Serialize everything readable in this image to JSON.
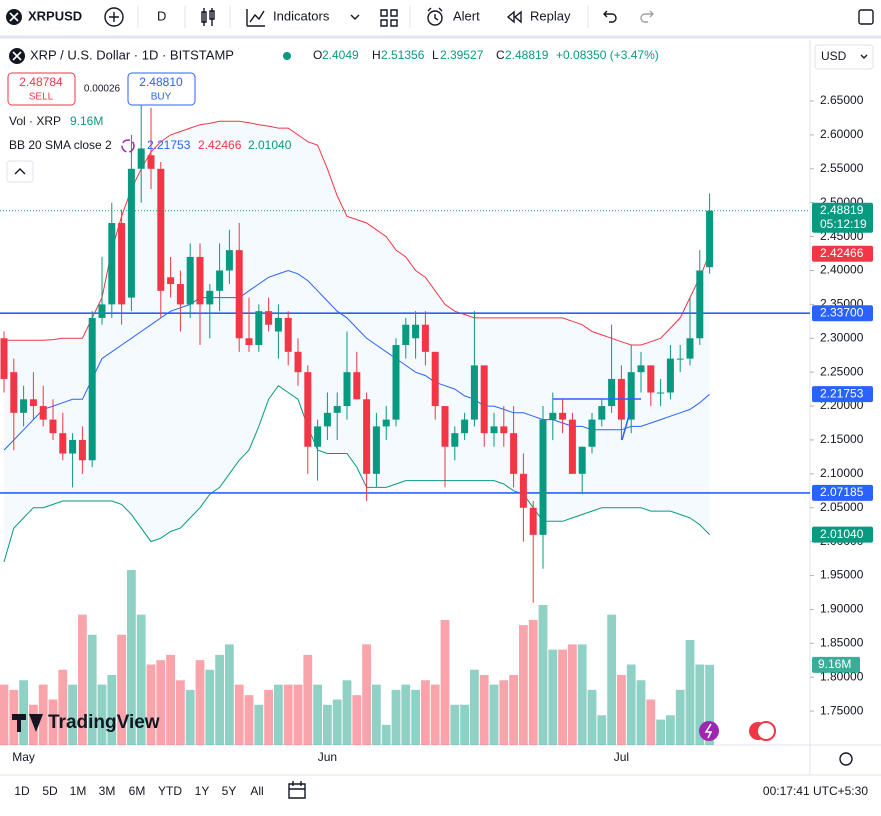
{
  "toolbar": {
    "symbol": "XRPUSD",
    "interval": "D",
    "indicators": "Indicators",
    "alert": "Alert",
    "replay": "Replay"
  },
  "legend": {
    "title": "XRP / U.S. Dollar · 1D · BITSTAMP",
    "o": "O",
    "h": "H",
    "l": "L",
    "c": "C",
    "change": "+0.08350 (+3.47%)",
    "sell": {
      "price": "2.48784",
      "label": "SELL"
    },
    "spread": "0.00026",
    "buy": {
      "price": "2.48810",
      "label": "BUY"
    },
    "vol": "Vol · XRP",
    "bb": "BB 20 SMA close 2"
  },
  "currency": "USD",
  "countdown": "05:12:19",
  "brand": "TradingView",
  "ranges": [
    "1D",
    "5D",
    "1M",
    "3M",
    "6M",
    "YTD",
    "1Y",
    "5Y",
    "All"
  ],
  "clock": "00:17:41 UTC+5:30",
  "chart_data": {
    "type": "candlestick",
    "categories": [
      null,
      null,
      "May",
      null,
      null,
      null,
      null,
      null,
      null,
      null,
      null,
      null,
      null,
      null,
      null,
      null,
      null,
      null,
      null,
      null,
      null,
      null,
      null,
      null,
      null,
      null,
      null,
      null,
      null,
      null,
      null,
      null,
      null,
      "Jun",
      null,
      null,
      null,
      null,
      null,
      null,
      null,
      null,
      null,
      null,
      null,
      null,
      null,
      null,
      null,
      null,
      null,
      null,
      null,
      null,
      null,
      null,
      null,
      null,
      null,
      null,
      null,
      null,
      null,
      "Jul",
      null,
      null,
      null,
      null,
      null,
      null,
      null,
      null,
      null
    ],
    "open": [
      2.3,
      2.25,
      2.19,
      2.21,
      2.2,
      2.18,
      2.16,
      2.13,
      2.15,
      2.12,
      2.33,
      2.35,
      2.47,
      2.36,
      2.55,
      2.57,
      2.55,
      2.39,
      2.38,
      2.35,
      2.42,
      2.35,
      2.37,
      2.4,
      2.43,
      2.3,
      2.29,
      2.34,
      2.31,
      2.33,
      2.28,
      2.25,
      2.14,
      2.17,
      2.19,
      2.2,
      2.25,
      2.21,
      2.1,
      2.17,
      2.18,
      2.29,
      2.3,
      2.32,
      2.28,
      2.2,
      2.14,
      2.16,
      2.18,
      2.26,
      2.16,
      2.17,
      2.16,
      2.1,
      2.05,
      2.01,
      2.18,
      2.19,
      2.18,
      2.1,
      2.14,
      2.18,
      2.2,
      2.24,
      2.18,
      2.25,
      2.26,
      2.22,
      2.22,
      2.27,
      2.27,
      2.3,
      2.4049
    ],
    "high": [
      2.31,
      2.27,
      2.23,
      2.25,
      2.23,
      2.21,
      2.19,
      2.16,
      2.17,
      2.34,
      2.42,
      2.5,
      2.49,
      2.6,
      2.65,
      2.64,
      2.56,
      2.42,
      2.4,
      2.44,
      2.44,
      2.38,
      2.44,
      2.46,
      2.47,
      2.36,
      2.35,
      2.36,
      2.35,
      2.34,
      2.3,
      2.26,
      2.18,
      2.22,
      2.22,
      2.31,
      2.28,
      2.22,
      2.19,
      2.2,
      2.3,
      2.33,
      2.34,
      2.34,
      2.28,
      2.2,
      2.17,
      2.19,
      2.34,
      2.26,
      2.19,
      2.2,
      2.2,
      2.13,
      2.06,
      2.2,
      2.22,
      2.21,
      2.19,
      2.14,
      2.19,
      2.21,
      2.32,
      2.26,
      2.29,
      2.28,
      2.26,
      2.24,
      2.29,
      2.29,
      2.36,
      2.43,
      2.51356
    ],
    "low": [
      2.22,
      2.135,
      2.17,
      2.18,
      2.17,
      2.15,
      2.12,
      2.08,
      2.1,
      2.11,
      2.32,
      2.33,
      2.32,
      2.34,
      2.5,
      2.52,
      2.33,
      2.36,
      2.31,
      2.33,
      2.29,
      2.3,
      2.34,
      2.38,
      2.28,
      2.28,
      2.28,
      2.31,
      2.27,
      2.26,
      2.23,
      2.1,
      2.09,
      2.15,
      2.15,
      2.18,
      2.21,
      2.06,
      2.08,
      2.15,
      2.17,
      2.27,
      2.27,
      2.26,
      2.18,
      2.08,
      2.12,
      2.15,
      2.17,
      2.14,
      2.14,
      2.14,
      2.08,
      2.0,
      1.91,
      1.96,
      2.15,
      2.16,
      2.1,
      2.07,
      2.13,
      2.17,
      2.19,
      2.15,
      2.16,
      2.22,
      2.2,
      2.2,
      2.21,
      2.25,
      2.26,
      2.29,
      2.39527
    ],
    "close": [
      2.24,
      2.19,
      2.21,
      2.2,
      2.18,
      2.16,
      2.13,
      2.15,
      2.12,
      2.33,
      2.35,
      2.47,
      2.35,
      2.55,
      2.58,
      2.55,
      2.37,
      2.38,
      2.35,
      2.42,
      2.35,
      2.37,
      2.4,
      2.43,
      2.3,
      2.29,
      2.34,
      2.32,
      2.33,
      2.28,
      2.25,
      2.14,
      2.17,
      2.19,
      2.2,
      2.25,
      2.21,
      2.1,
      2.17,
      2.18,
      2.29,
      2.32,
      2.32,
      2.28,
      2.2,
      2.14,
      2.16,
      2.18,
      2.26,
      2.16,
      2.17,
      2.16,
      2.1,
      2.05,
      2.01,
      2.18,
      2.19,
      2.18,
      2.1,
      2.14,
      2.18,
      2.2,
      2.24,
      2.18,
      2.25,
      2.26,
      2.22,
      2.22,
      2.27,
      2.27,
      2.3,
      2.4,
      2.48819
    ],
    "up_color": "#089981",
    "down_color": "#f23645",
    "volume": {
      "values": [
        6.9,
        6.3,
        7.4,
        4.6,
        6.9,
        5.2,
        8.6,
        6.9,
        14.9,
        12.6,
        6.9,
        8.0,
        12.6,
        20.0,
        14.9,
        9.2,
        9.7,
        10.3,
        7.4,
        6.3,
        9.7,
        8.6,
        10.3,
        11.5,
        6.9,
        5.7,
        4.6,
        6.3,
        6.9,
        6.9,
        6.9,
        10.3,
        6.9,
        4.6,
        5.2,
        7.4,
        5.7,
        11.5,
        6.9,
        2.3,
        6.3,
        6.9,
        6.3,
        7.4,
        6.9,
        14.3,
        4.6,
        4.6,
        8.6,
        8.0,
        6.9,
        7.4,
        8.0,
        13.7,
        14.3,
        16.0,
        10.9,
        10.9,
        11.5,
        11.5,
        6.3,
        3.4,
        14.9,
        8.0,
        9.2,
        7.4,
        5.2,
        2.9,
        3.4,
        6.3,
        12.0,
        9.2,
        9.16
      ],
      "value_labels": [
        null,
        null,
        null,
        null,
        null,
        null,
        null,
        null,
        null,
        null,
        null,
        null,
        null,
        null,
        null,
        null,
        null,
        null,
        null,
        null,
        null,
        null,
        null,
        null,
        null,
        null,
        null,
        null,
        null,
        null,
        null,
        null,
        null,
        null,
        null,
        null,
        null,
        null,
        null,
        null,
        null,
        null,
        null,
        null,
        null,
        null,
        null,
        null,
        null,
        null,
        null,
        null,
        null,
        null,
        null,
        null,
        null,
        null,
        null,
        null,
        null,
        null,
        null,
        null,
        null,
        null,
        null,
        null,
        null,
        null,
        null,
        null,
        "9.16M"
      ]
    },
    "bands": {
      "basis": {
        "color": "#2962ff",
        "values": [
          2.135,
          2.15,
          2.165,
          2.18,
          2.195,
          2.2,
          2.205,
          2.21,
          2.21,
          2.24,
          2.27,
          2.28,
          2.29,
          2.3,
          2.31,
          2.32,
          2.33,
          2.34,
          2.345,
          2.35,
          2.36,
          2.36,
          2.36,
          2.36,
          2.36,
          2.37,
          2.38,
          2.39,
          2.395,
          2.4,
          2.395,
          2.385,
          2.37,
          2.355,
          2.34,
          2.33,
          2.315,
          2.3,
          2.29,
          2.28,
          2.27,
          2.26,
          2.25,
          2.245,
          2.235,
          2.23,
          2.225,
          2.215,
          2.21,
          2.2,
          2.2,
          2.195,
          2.19,
          2.19,
          2.185,
          2.18,
          2.18,
          2.175,
          2.17,
          2.17,
          2.165,
          2.165,
          2.165,
          2.165,
          2.17,
          2.17,
          2.175,
          2.18,
          2.185,
          2.19,
          2.195,
          2.205,
          2.21753
        ]
      },
      "upper": {
        "color": "#f23645",
        "values": [
          2.297,
          2.297,
          2.297,
          2.297,
          2.297,
          2.298,
          2.3,
          2.3,
          2.3,
          2.33,
          2.36,
          2.43,
          2.48,
          2.52,
          2.55,
          2.575,
          2.59,
          2.6,
          2.605,
          2.61,
          2.615,
          2.617,
          2.62,
          2.62,
          2.62,
          2.618,
          2.615,
          2.613,
          2.61,
          2.61,
          2.6,
          2.59,
          2.585,
          2.55,
          2.51,
          2.48,
          2.475,
          2.47,
          2.46,
          2.45,
          2.43,
          2.42,
          2.4,
          2.39,
          2.37,
          2.35,
          2.34,
          2.335,
          2.33,
          2.33,
          2.33,
          2.33,
          2.33,
          2.33,
          2.33,
          2.33,
          2.33,
          2.33,
          2.325,
          2.32,
          2.31,
          2.305,
          2.3,
          2.295,
          2.29,
          2.29,
          2.295,
          2.3,
          2.315,
          2.33,
          2.36,
          2.39,
          2.42466
        ]
      },
      "lower": {
        "color": "#089981",
        "values": [
          1.97,
          2.02,
          2.035,
          2.05,
          2.05,
          2.055,
          2.06,
          2.06,
          2.06,
          2.06,
          2.06,
          2.06,
          2.055,
          2.04,
          2.02,
          2.0,
          2.005,
          2.015,
          2.02,
          2.035,
          2.05,
          2.07,
          2.08,
          2.1,
          2.12,
          2.135,
          2.17,
          2.21,
          2.23,
          2.22,
          2.21,
          2.17,
          2.135,
          2.13,
          2.13,
          2.13,
          2.11,
          2.08,
          2.08,
          2.08,
          2.085,
          2.09,
          2.09,
          2.09,
          2.09,
          2.09,
          2.09,
          2.09,
          2.09,
          2.09,
          2.09,
          2.085,
          2.075,
          2.07,
          2.05,
          2.03,
          2.03,
          2.03,
          2.035,
          2.04,
          2.045,
          2.05,
          2.05,
          2.05,
          2.05,
          2.05,
          2.045,
          2.045,
          2.045,
          2.04,
          2.035,
          2.025,
          2.0104
        ],
        "value_labels": [
          null,
          null,
          null,
          null,
          null,
          null,
          null,
          null,
          null,
          null,
          null,
          null,
          null,
          null,
          null,
          null,
          null,
          null,
          null,
          null,
          null,
          null,
          null,
          null,
          null,
          null,
          null,
          null,
          null,
          null,
          null,
          null,
          null,
          null,
          null,
          null,
          null,
          null,
          null,
          null,
          null,
          null,
          null,
          null,
          null,
          null,
          null,
          null,
          null,
          null,
          null,
          null,
          null,
          null,
          null,
          null,
          null,
          null,
          null,
          null,
          null,
          null,
          null,
          null,
          null,
          null,
          null,
          null,
          null,
          null,
          null,
          null,
          "2.01040"
        ]
      }
    },
    "levels": [
      {
        "value": 2.337,
        "label": "2.33700",
        "color": "#2962ff"
      },
      {
        "value": 2.07185,
        "label": "2.07185",
        "color": "#2962ff"
      }
    ],
    "ylim": [
      1.7,
      2.74
    ],
    "yticks": [
      {
        "value": 2.65,
        "label": "2.65000"
      },
      {
        "value": 2.6,
        "label": "2.60000"
      },
      {
        "value": 2.55,
        "label": "2.55000"
      },
      {
        "value": 2.5,
        "label": "2.50000"
      },
      {
        "value": 2.45,
        "label": "2.45000"
      },
      {
        "value": 2.4,
        "label": "2.40000"
      },
      {
        "value": 2.35,
        "label": "2.35000"
      },
      {
        "value": 2.3,
        "label": "2.30000"
      },
      {
        "value": 2.25,
        "label": "2.25000"
      },
      {
        "value": 2.2,
        "label": "2.20000"
      },
      {
        "value": 2.15,
        "label": "2.15000"
      },
      {
        "value": 2.1,
        "label": "2.10000"
      },
      {
        "value": 2.05,
        "label": "2.05000"
      },
      {
        "value": 2.0,
        "label": "2.00000"
      },
      {
        "value": 1.95,
        "label": "1.95000"
      },
      {
        "value": 1.9,
        "label": "1.90000"
      },
      {
        "value": 1.85,
        "label": "1.85000"
      },
      {
        "value": 1.8,
        "label": "1.80000"
      },
      {
        "value": 1.75,
        "label": "1.75000"
      }
    ],
    "grid": false
  }
}
